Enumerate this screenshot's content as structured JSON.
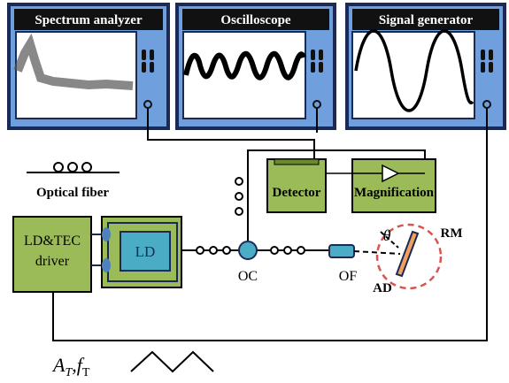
{
  "instruments": [
    {
      "label": "Spectrum analyzer"
    },
    {
      "label": "Oscilloscope"
    },
    {
      "label": "Signal generator"
    }
  ],
  "legend": {
    "label": "Optical fiber"
  },
  "nodes": {
    "detector": "Detector",
    "magnification": "Magnification",
    "driver": [
      "LD&TEC",
      "driver"
    ],
    "ld": "LD",
    "oc": "OC",
    "of": "OF",
    "theta": "θ",
    "rm": "RM",
    "ad": "AD"
  },
  "modulation": {
    "a": "A",
    "a_sub": "T",
    "sep": ",",
    "f": "f",
    "f_sub": "T"
  }
}
